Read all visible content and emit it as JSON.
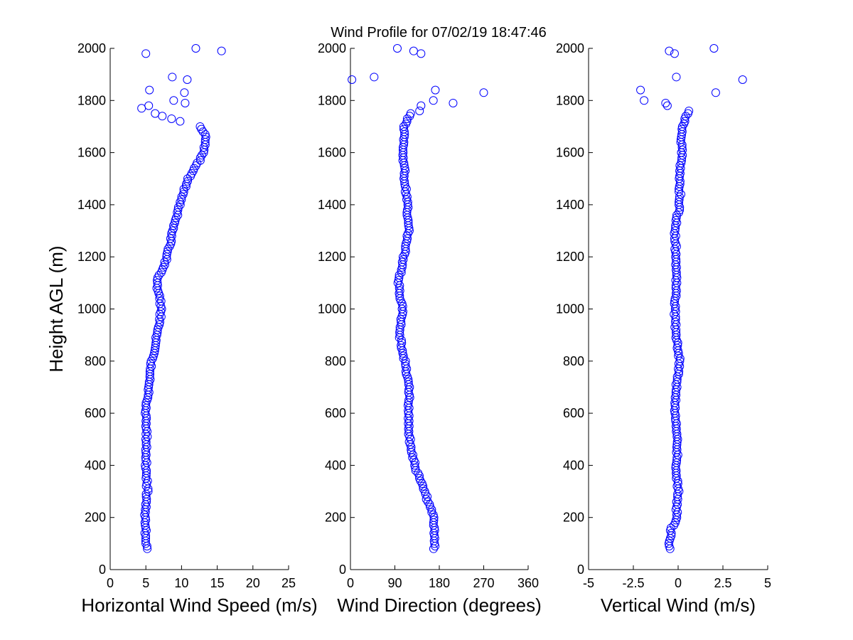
{
  "title": "Wind Profile for  07/02/19 18:47:46",
  "chart_data": [
    {
      "type": "scatter",
      "xlabel": "Horizontal Wind Speed (m/s)",
      "ylabel": "Height AGL (m)",
      "xlim": [
        0,
        25
      ],
      "ylim": [
        0,
        2000
      ],
      "xticks": [
        "0",
        "5",
        "10",
        "15",
        "20",
        "25"
      ],
      "yticks": [
        "0",
        "200",
        "400",
        "600",
        "800",
        "1000",
        "1200",
        "1400",
        "1600",
        "1800",
        "2000"
      ],
      "marker_color": "#0000ff",
      "profile": [
        [
          5.2,
          80
        ],
        [
          5.0,
          120
        ],
        [
          4.9,
          200
        ],
        [
          5.2,
          300
        ],
        [
          5.0,
          400
        ],
        [
          5.1,
          500
        ],
        [
          5.0,
          600
        ],
        [
          5.4,
          700
        ],
        [
          5.8,
          800
        ],
        [
          6.6,
          900
        ],
        [
          7.2,
          1000
        ],
        [
          6.5,
          1100
        ],
        [
          8.0,
          1200
        ],
        [
          8.8,
          1300
        ],
        [
          9.8,
          1400
        ],
        [
          10.9,
          1500
        ],
        [
          12.3,
          1560
        ],
        [
          13.2,
          1600
        ],
        [
          13.4,
          1660
        ],
        [
          12.6,
          1700
        ]
      ],
      "scattered": [
        [
          12.0,
          2000
        ],
        [
          15.6,
          1990
        ],
        [
          5.0,
          1980
        ],
        [
          8.7,
          1890
        ],
        [
          10.8,
          1880
        ],
        [
          5.5,
          1840
        ],
        [
          10.4,
          1830
        ],
        [
          8.9,
          1800
        ],
        [
          10.5,
          1790
        ],
        [
          5.4,
          1780
        ],
        [
          4.4,
          1770
        ],
        [
          6.3,
          1750
        ],
        [
          7.3,
          1740
        ],
        [
          8.6,
          1730
        ],
        [
          9.8,
          1720
        ]
      ]
    },
    {
      "type": "scatter",
      "xlabel": "Wind Direction (degrees)",
      "ylabel": "",
      "xlim": [
        0,
        360
      ],
      "ylim": [
        0,
        2000
      ],
      "xticks": [
        "0",
        "90",
        "180",
        "270",
        "360"
      ],
      "yticks": [
        "0",
        "200",
        "400",
        "600",
        "800",
        "1000",
        "1200",
        "1400",
        "1600",
        "1800",
        "2000"
      ],
      "marker_color": "#0000ff",
      "profile": [
        [
          170,
          80
        ],
        [
          168,
          200
        ],
        [
          150,
          300
        ],
        [
          130,
          400
        ],
        [
          120,
          500
        ],
        [
          117,
          600
        ],
        [
          120,
          700
        ],
        [
          110,
          800
        ],
        [
          100,
          900
        ],
        [
          105,
          1000
        ],
        [
          97,
          1100
        ],
        [
          108,
          1200
        ],
        [
          118,
          1300
        ],
        [
          115,
          1400
        ],
        [
          110,
          1500
        ],
        [
          107,
          1600
        ],
        [
          110,
          1700
        ],
        [
          122,
          1750
        ]
      ],
      "scattered": [
        [
          95,
          2000
        ],
        [
          128,
          1990
        ],
        [
          143,
          1980
        ],
        [
          48,
          1890
        ],
        [
          3,
          1880
        ],
        [
          172,
          1840
        ],
        [
          270,
          1830
        ],
        [
          168,
          1800
        ],
        [
          208,
          1790
        ],
        [
          143,
          1780
        ],
        [
          140,
          1760
        ]
      ]
    },
    {
      "type": "scatter",
      "xlabel": "Vertical Wind (m/s)",
      "ylabel": "",
      "xlim": [
        -5,
        5
      ],
      "ylim": [
        0,
        2000
      ],
      "xticks": [
        "-5",
        "-2.5",
        "0",
        "2.5",
        "5"
      ],
      "yticks": [
        "0",
        "200",
        "400",
        "600",
        "800",
        "1000",
        "1200",
        "1400",
        "1600",
        "1800",
        "2000"
      ],
      "marker_color": "#0000ff",
      "profile": [
        [
          -0.4,
          80
        ],
        [
          -0.5,
          100
        ],
        [
          -0.4,
          150
        ],
        [
          -0.1,
          200
        ],
        [
          0.0,
          300
        ],
        [
          -0.1,
          400
        ],
        [
          0.0,
          500
        ],
        [
          -0.2,
          600
        ],
        [
          -0.1,
          700
        ],
        [
          0.1,
          800
        ],
        [
          -0.1,
          900
        ],
        [
          -0.2,
          1000
        ],
        [
          -0.1,
          1100
        ],
        [
          -0.1,
          1200
        ],
        [
          -0.2,
          1300
        ],
        [
          0.1,
          1400
        ],
        [
          0.1,
          1500
        ],
        [
          0.2,
          1600
        ],
        [
          0.2,
          1700
        ],
        [
          0.6,
          1760
        ]
      ],
      "scattered": [
        [
          2.0,
          2000
        ],
        [
          -0.5,
          1990
        ],
        [
          -0.2,
          1980
        ],
        [
          -0.1,
          1890
        ],
        [
          3.6,
          1880
        ],
        [
          -2.1,
          1840
        ],
        [
          2.1,
          1830
        ],
        [
          -1.9,
          1800
        ],
        [
          -0.7,
          1790
        ],
        [
          -0.6,
          1780
        ]
      ]
    }
  ]
}
